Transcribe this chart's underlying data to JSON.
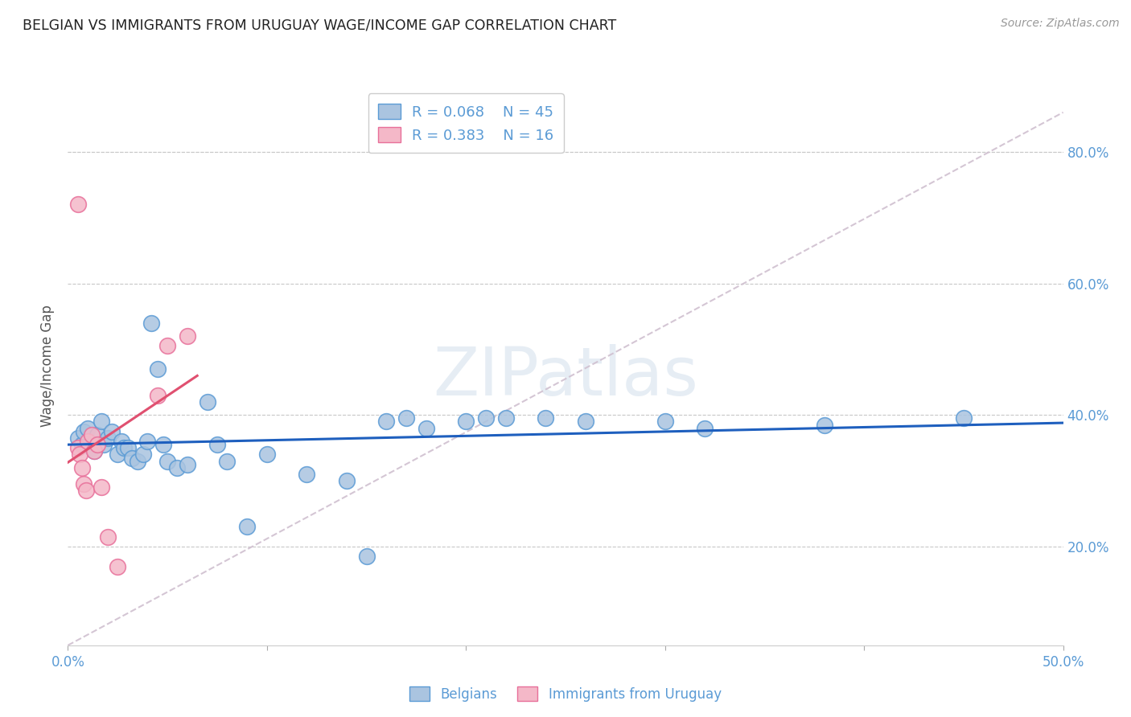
{
  "title": "BELGIAN VS IMMIGRANTS FROM URUGUAY WAGE/INCOME GAP CORRELATION CHART",
  "source": "Source: ZipAtlas.com",
  "ylabel": "Wage/Income Gap",
  "xlim": [
    0,
    0.5
  ],
  "ylim": [
    0.05,
    0.9
  ],
  "ytick_vals": [
    0.2,
    0.4,
    0.6,
    0.8
  ],
  "ytick_labels": [
    "20.0%",
    "40.0%",
    "60.0%",
    "80.0%"
  ],
  "xtick_vals": [
    0.0,
    0.1,
    0.2,
    0.3,
    0.4,
    0.5
  ],
  "xtick_labels_show": [
    "0.0%",
    "",
    "",
    "",
    "",
    "50.0%"
  ],
  "grid_color": "#c8c8c8",
  "background_color": "#ffffff",
  "belgian_color": "#aac4e0",
  "belgian_edge_color": "#5b9bd5",
  "uruguay_color": "#f4b8c8",
  "uruguay_edge_color": "#e8709a",
  "blue_line_color": "#1e5fbe",
  "pink_line_color": "#e05070",
  "diag_line_color": "#d0c0d0",
  "legend_R1": "R = 0.068",
  "legend_N1": "N = 45",
  "legend_R2": "R = 0.383",
  "legend_N2": "N = 16",
  "watermark": "ZIPatlas",
  "belgian_x": [
    0.005,
    0.007,
    0.008,
    0.01,
    0.012,
    0.013,
    0.015,
    0.017,
    0.018,
    0.02,
    0.022,
    0.025,
    0.027,
    0.028,
    0.03,
    0.032,
    0.035,
    0.038,
    0.04,
    0.042,
    0.045,
    0.048,
    0.05,
    0.055,
    0.06,
    0.07,
    0.075,
    0.08,
    0.09,
    0.1,
    0.12,
    0.14,
    0.15,
    0.16,
    0.17,
    0.18,
    0.2,
    0.21,
    0.22,
    0.24,
    0.26,
    0.3,
    0.32,
    0.38,
    0.45
  ],
  "belgian_y": [
    0.365,
    0.355,
    0.375,
    0.38,
    0.35,
    0.345,
    0.37,
    0.39,
    0.355,
    0.365,
    0.375,
    0.34,
    0.36,
    0.35,
    0.35,
    0.335,
    0.33,
    0.34,
    0.36,
    0.54,
    0.47,
    0.355,
    0.33,
    0.32,
    0.325,
    0.42,
    0.355,
    0.33,
    0.23,
    0.34,
    0.31,
    0.3,
    0.185,
    0.39,
    0.395,
    0.38,
    0.39,
    0.395,
    0.395,
    0.395,
    0.39,
    0.39,
    0.38,
    0.385,
    0.395
  ],
  "uruguay_x": [
    0.005,
    0.005,
    0.006,
    0.007,
    0.008,
    0.009,
    0.01,
    0.012,
    0.013,
    0.015,
    0.017,
    0.02,
    0.025,
    0.045,
    0.05,
    0.06
  ],
  "uruguay_y": [
    0.72,
    0.35,
    0.34,
    0.32,
    0.295,
    0.285,
    0.36,
    0.37,
    0.345,
    0.355,
    0.29,
    0.215,
    0.17,
    0.43,
    0.505,
    0.52
  ]
}
